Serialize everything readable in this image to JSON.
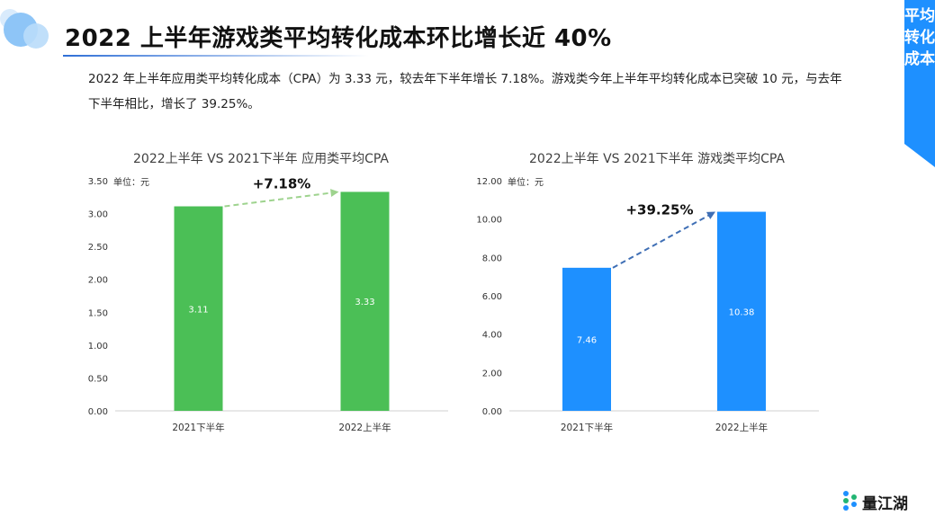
{
  "header": {
    "title": "2022 上半年游戏类平均转化成本环比增长近 40%",
    "description": "2022 年上半年应用类平均转化成本（CPA）为 3.33 元，较去年下半年增长 7.18%。游戏类今年上半年平均转化成本已突破 10 元，与去年下半年相比，增长了 39.25%。"
  },
  "side_tag": {
    "label": "平均转化成本"
  },
  "logo": {
    "text": "量江湖"
  },
  "colors": {
    "accent": "#1e90ff",
    "green_bar": "#4bbf56",
    "blue_bar": "#1e90ff",
    "green_arrow": "#9ed38e",
    "blue_arrow": "#3f6fb5"
  },
  "chart_data": [
    {
      "type": "bar",
      "title": "2022上半年 VS 2021下半年 应用类平均CPA",
      "unit": "单位：元",
      "categories": [
        "2021下半年",
        "2022上半年"
      ],
      "values": [
        3.11,
        3.33
      ],
      "value_labels": [
        "3.11",
        "3.33"
      ],
      "ylim": [
        0,
        3.5
      ],
      "yticks": [
        "0.00",
        "0.50",
        "1.00",
        "1.50",
        "2.00",
        "2.50",
        "3.00",
        "3.50"
      ],
      "growth_label": "+7.18%",
      "xlabel": "",
      "ylabel": ""
    },
    {
      "type": "bar",
      "title": "2022上半年 VS 2021下半年 游戏类平均CPA",
      "unit": "单位：元",
      "categories": [
        "2021下半年",
        "2022上半年"
      ],
      "values": [
        7.46,
        10.38
      ],
      "value_labels": [
        "7.46",
        "10.38"
      ],
      "ylim": [
        0,
        12
      ],
      "yticks": [
        "0.00",
        "2.00",
        "4.00",
        "6.00",
        "8.00",
        "10.00",
        "12.00"
      ],
      "growth_label": "+39.25%",
      "xlabel": "",
      "ylabel": ""
    }
  ]
}
